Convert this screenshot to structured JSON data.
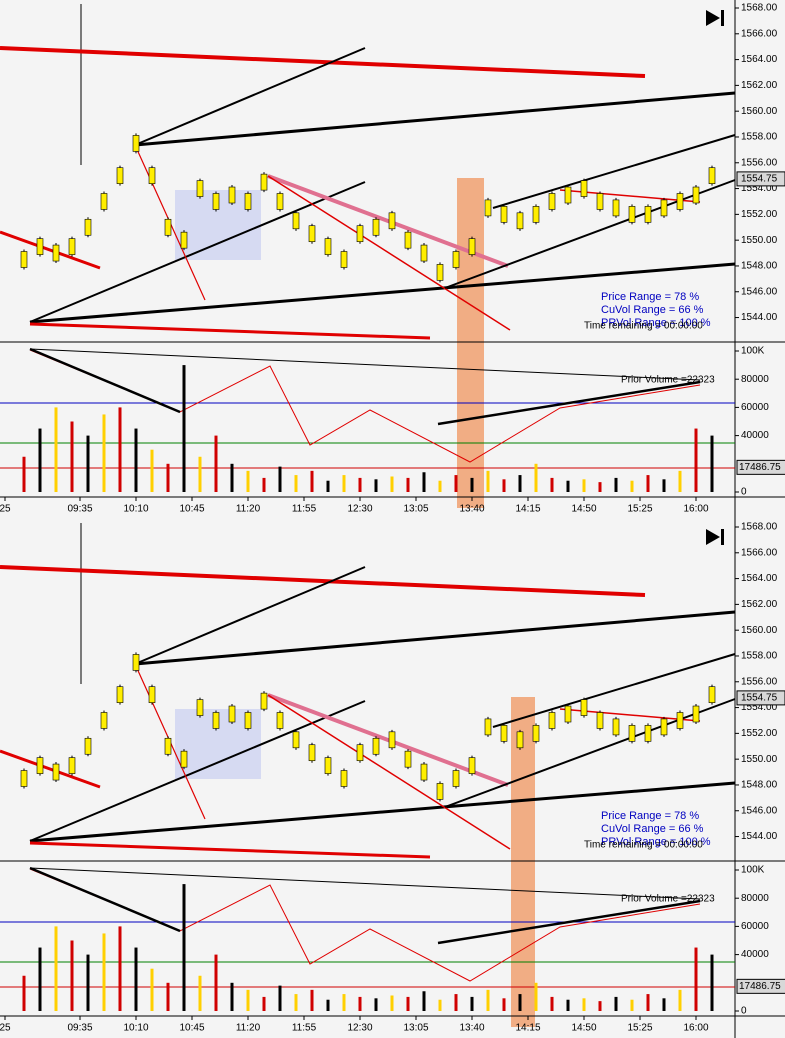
{
  "chart_data": {
    "type": "price-volume",
    "time_labels": [
      "25",
      "09:35",
      "10:10",
      "10:45",
      "11:20",
      "11:55",
      "12:30",
      "13:05",
      "13:40",
      "14:15",
      "14:50",
      "15:25",
      "16:00"
    ],
    "ylim": [
      1543,
      1568.5
    ],
    "yticks": [
      {
        "value": 1544,
        "label": "1544.00"
      },
      {
        "value": 1546,
        "label": "1546.00"
      },
      {
        "value": 1548,
        "label": "1548.00"
      },
      {
        "value": 1550,
        "label": "1550.00"
      },
      {
        "value": 1552,
        "label": "1552.00"
      },
      {
        "value": 1554,
        "label": "1554.00"
      },
      {
        "value": 1556,
        "label": "1556.00"
      },
      {
        "value": 1558,
        "label": "1558.00"
      },
      {
        "value": 1560,
        "label": "1560.00"
      },
      {
        "value": 1562,
        "label": "1562.00"
      },
      {
        "value": 1564,
        "label": "1564.00"
      },
      {
        "value": 1566,
        "label": "1566.00"
      },
      {
        "value": 1568,
        "label": "1568.00"
      }
    ],
    "y2lim": [
      0,
      105000
    ],
    "y2ticks": [
      {
        "value": 100000,
        "label": "100K"
      },
      80000,
      60000,
      40000,
      0
    ],
    "series": [
      {
        "name": "Price",
        "color": "#ffee00",
        "values": [
          1548.5,
          1549.5,
          1549,
          1549.5,
          1551,
          1553,
          1555,
          1557.5,
          1555,
          1551,
          1550,
          1554,
          1553,
          1553.5,
          1553,
          1554.5,
          1553,
          1551.5,
          1550.5,
          1549.5,
          1548.5,
          1550.5,
          1551,
          1551.5,
          1550,
          1549,
          1547.5,
          1548.5,
          1549.5,
          1552.5,
          1552,
          1551.5,
          1552,
          1553,
          1553.5,
          1554,
          1553,
          1552.5,
          1552,
          1552,
          1552.5,
          1553,
          1553.5,
          1555
        ]
      },
      {
        "name": "Volume",
        "color": "#000000",
        "axis": "y2",
        "values": [
          25000,
          45000,
          60000,
          50000,
          40000,
          55000,
          60000,
          45000,
          30000,
          20000,
          90000,
          25000,
          40000,
          20000,
          15000,
          10000,
          18000,
          12000,
          15000,
          8000,
          12000,
          10000,
          9000,
          11000,
          10000,
          14000,
          8000,
          12000,
          10000,
          15000,
          9000,
          12000,
          20000,
          10000,
          8000,
          9000,
          7000,
          10000,
          8000,
          12000,
          9000,
          15000,
          45000,
          40000
        ]
      }
    ],
    "last_price": {
      "value": 1554.75,
      "label": "1554.75"
    },
    "last_volume": {
      "value": 17486.75,
      "label": "17486.75"
    },
    "stats": [
      "Price Range  = 78 %",
      "CuVol Range = 66 %",
      "PRVol Range = 100 %",
      "Time remaining = 00:00:00"
    ],
    "prior_volume": "Prior Volume =22323"
  }
}
